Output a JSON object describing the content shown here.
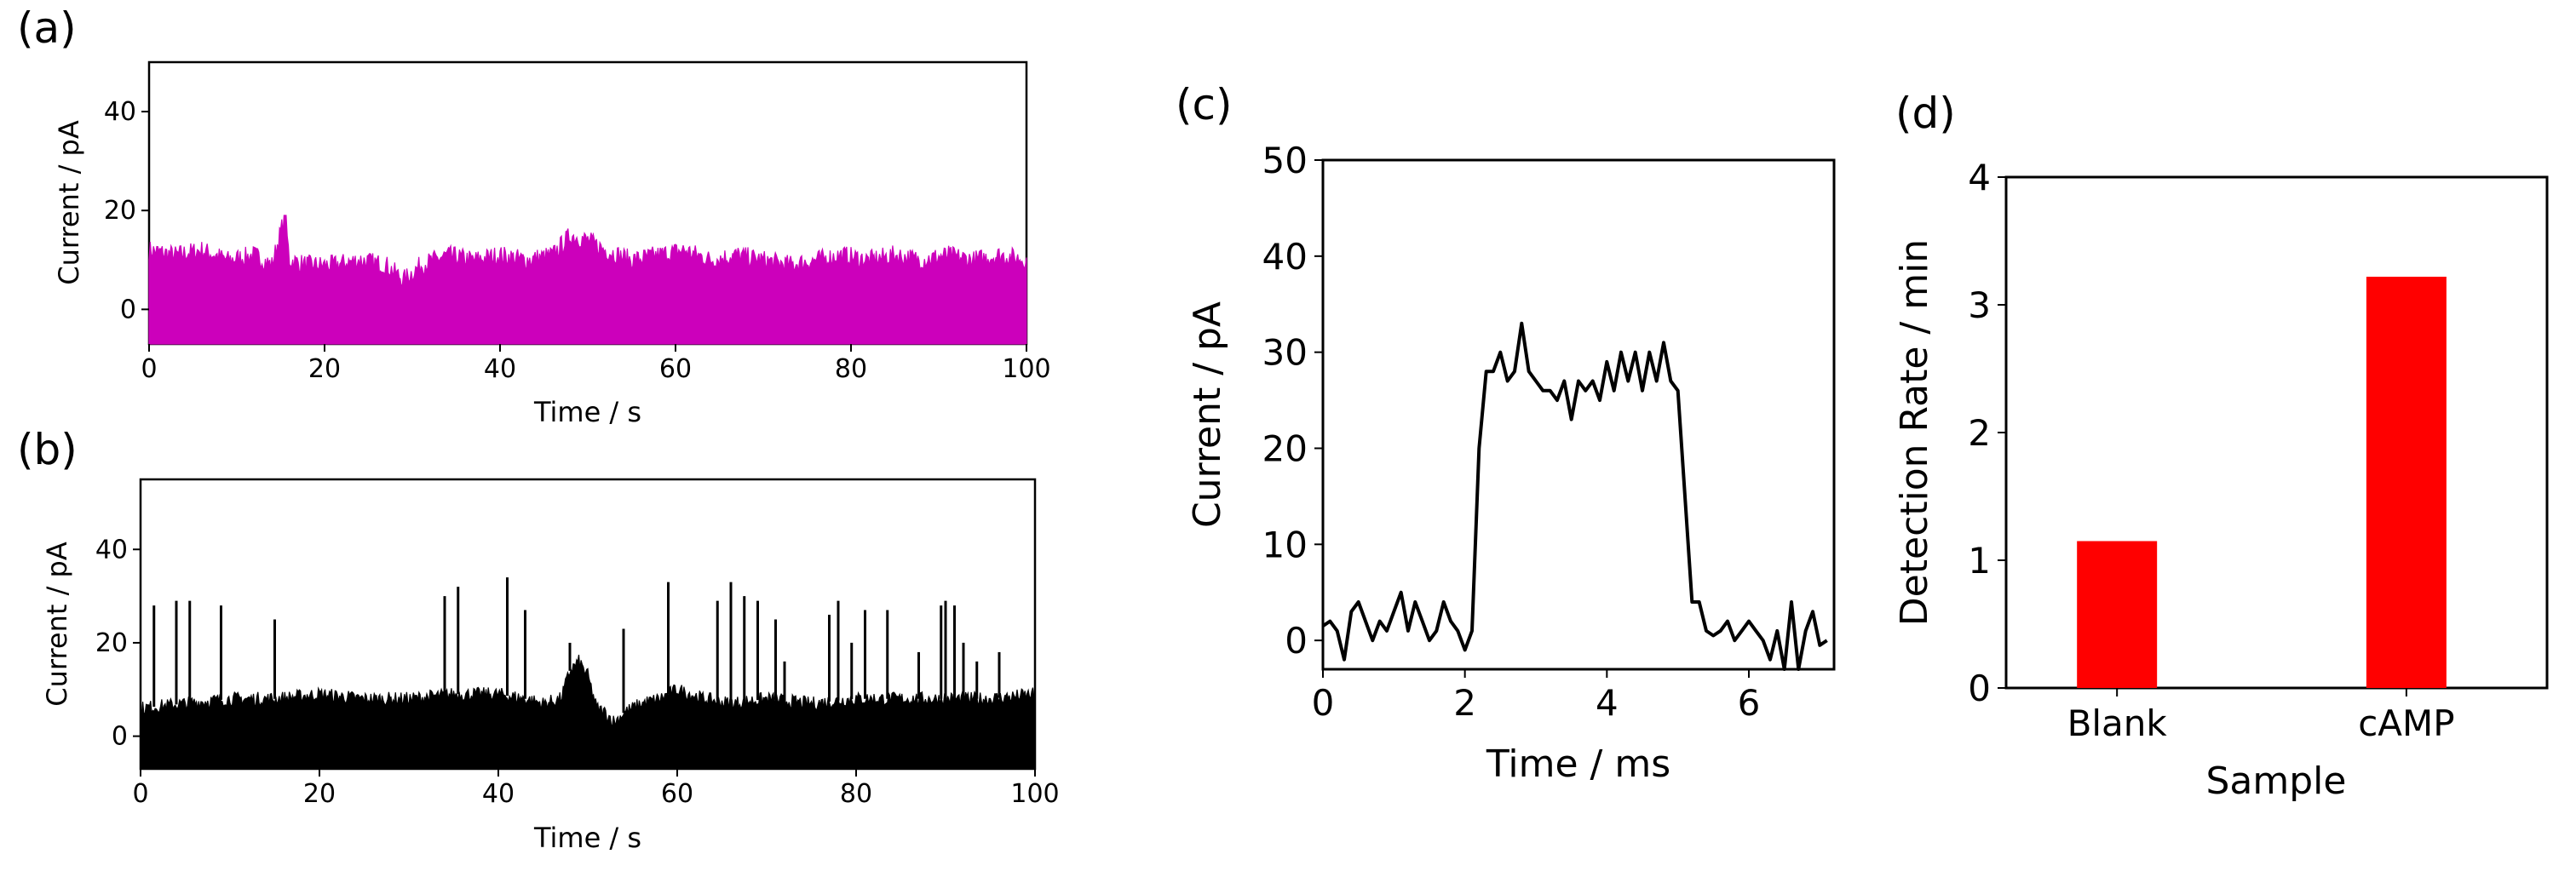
{
  "colors": {
    "trace_a": "#cc00bb",
    "trace_b": "#000000",
    "trace_c": "#000000",
    "bars_d": "#ff0000"
  },
  "chart_data": [
    {
      "id": "a",
      "panel_label": "(a)",
      "type": "line",
      "title": "",
      "xlabel": "Time / s",
      "ylabel": "Current / pA",
      "xlim": [
        0,
        100
      ],
      "ylim": [
        -7,
        50
      ],
      "xticks": [
        0,
        20,
        40,
        60,
        80,
        100
      ],
      "yticks": [
        0,
        20,
        40
      ],
      "fill_baseline": -7,
      "noise_band_low": -7,
      "envelope": [
        [
          0,
          12
        ],
        [
          3,
          11
        ],
        [
          6,
          12
        ],
        [
          9,
          10
        ],
        [
          12,
          11
        ],
        [
          14,
          9
        ],
        [
          15.5,
          19
        ],
        [
          16,
          10
        ],
        [
          18,
          9
        ],
        [
          21,
          9
        ],
        [
          24,
          10
        ],
        [
          27,
          9
        ],
        [
          29,
          6
        ],
        [
          31,
          9
        ],
        [
          34,
          11
        ],
        [
          37,
          10
        ],
        [
          40,
          11
        ],
        [
          43,
          10
        ],
        [
          46,
          11
        ],
        [
          48,
          15
        ],
        [
          50,
          14
        ],
        [
          52,
          12
        ],
        [
          55,
          10
        ],
        [
          58,
          11
        ],
        [
          61,
          12
        ],
        [
          64,
          10
        ],
        [
          67,
          11
        ],
        [
          70,
          10
        ],
        [
          73,
          9
        ],
        [
          76,
          10
        ],
        [
          79,
          11
        ],
        [
          82,
          10
        ],
        [
          85,
          11
        ],
        [
          88,
          10
        ],
        [
          91,
          11
        ],
        [
          94,
          10
        ],
        [
          97,
          11
        ],
        [
          100,
          10
        ]
      ]
    },
    {
      "id": "b",
      "panel_label": "(b)",
      "type": "line",
      "title": "",
      "xlabel": "Time / s",
      "ylabel": "Current / pA",
      "xlim": [
        0,
        100
      ],
      "ylim": [
        -7,
        55
      ],
      "xticks": [
        0,
        20,
        40,
        60,
        80,
        100
      ],
      "yticks": [
        0,
        20,
        40
      ],
      "fill_baseline": -7,
      "envelope": [
        [
          0,
          6
        ],
        [
          5,
          7
        ],
        [
          10,
          8
        ],
        [
          15,
          8
        ],
        [
          20,
          9
        ],
        [
          25,
          8
        ],
        [
          30,
          8
        ],
        [
          35,
          9
        ],
        [
          40,
          9
        ],
        [
          43,
          8
        ],
        [
          45,
          7
        ],
        [
          47,
          8
        ],
        [
          48,
          14
        ],
        [
          49,
          16
        ],
        [
          50,
          13
        ],
        [
          51,
          6
        ],
        [
          52,
          5
        ],
        [
          53,
          3
        ],
        [
          54,
          5
        ],
        [
          56,
          7
        ],
        [
          58,
          8
        ],
        [
          60,
          10
        ],
        [
          63,
          8
        ],
        [
          66,
          7
        ],
        [
          70,
          8
        ],
        [
          75,
          7
        ],
        [
          80,
          8
        ],
        [
          85,
          8
        ],
        [
          90,
          8
        ],
        [
          95,
          8
        ],
        [
          100,
          9
        ]
      ],
      "spikes": [
        [
          1.5,
          28
        ],
        [
          4,
          29
        ],
        [
          5.5,
          29
        ],
        [
          9,
          28
        ],
        [
          15,
          25
        ],
        [
          34,
          30
        ],
        [
          35.5,
          32
        ],
        [
          41,
          34
        ],
        [
          43,
          27
        ],
        [
          48,
          20
        ],
        [
          54,
          23
        ],
        [
          59,
          33
        ],
        [
          64.5,
          29
        ],
        [
          66,
          33
        ],
        [
          67.5,
          30
        ],
        [
          69,
          29
        ],
        [
          71,
          25
        ],
        [
          72,
          16
        ],
        [
          77,
          26
        ],
        [
          78,
          29
        ],
        [
          79.5,
          20
        ],
        [
          81,
          27
        ],
        [
          83.5,
          27
        ],
        [
          87,
          18
        ],
        [
          89.5,
          28
        ],
        [
          90,
          29
        ],
        [
          91,
          28
        ],
        [
          92,
          20
        ],
        [
          93.5,
          16
        ],
        [
          96,
          18
        ]
      ]
    },
    {
      "id": "c",
      "panel_label": "(c)",
      "type": "line",
      "title": "",
      "xlabel": "Time / ms",
      "ylabel": "Current / pA",
      "xlim": [
        0,
        7.2
      ],
      "ylim": [
        -3,
        50
      ],
      "xticks": [
        0,
        2,
        4,
        6
      ],
      "yticks": [
        0,
        10,
        20,
        30,
        40,
        50
      ],
      "x": [
        0.0,
        0.1,
        0.2,
        0.3,
        0.4,
        0.5,
        0.6,
        0.7,
        0.8,
        0.9,
        1.0,
        1.1,
        1.2,
        1.3,
        1.4,
        1.5,
        1.6,
        1.7,
        1.8,
        1.9,
        2.0,
        2.1,
        2.2,
        2.3,
        2.4,
        2.5,
        2.6,
        2.7,
        2.8,
        2.9,
        3.0,
        3.1,
        3.2,
        3.3,
        3.4,
        3.5,
        3.6,
        3.7,
        3.8,
        3.9,
        4.0,
        4.1,
        4.2,
        4.3,
        4.4,
        4.5,
        4.6,
        4.7,
        4.8,
        4.9,
        5.0,
        5.1,
        5.2,
        5.3,
        5.4,
        5.5,
        5.6,
        5.7,
        5.8,
        5.9,
        6.0,
        6.1,
        6.2,
        6.3,
        6.4,
        6.5,
        6.6,
        6.7,
        6.8,
        6.9,
        7.0,
        7.1
      ],
      "y": [
        1.5,
        2,
        1,
        -2,
        3,
        4,
        2,
        0,
        2,
        1,
        3,
        5,
        1,
        4,
        2,
        0,
        1,
        4,
        2,
        1,
        -1,
        1,
        20,
        28,
        28,
        30,
        27,
        28,
        33,
        28,
        27,
        26,
        26,
        25,
        27,
        23,
        27,
        26,
        27,
        25,
        29,
        26,
        30,
        27,
        30,
        26,
        30,
        27,
        31,
        27,
        26,
        15,
        4,
        4,
        1,
        0.5,
        1,
        2,
        0,
        1,
        2,
        1,
        0,
        -2,
        1,
        -3,
        4,
        -3,
        1,
        3,
        -0.5,
        0
      ]
    },
    {
      "id": "d",
      "panel_label": "(d)",
      "type": "bar",
      "title": "",
      "xlabel": "Sample",
      "ylabel": "Detection Rate / min",
      "categories": [
        "Blank",
        "cAMP"
      ],
      "values": [
        1.15,
        3.22
      ],
      "ylim": [
        0,
        4
      ],
      "yticks": [
        0,
        1,
        2,
        3,
        4
      ]
    }
  ]
}
